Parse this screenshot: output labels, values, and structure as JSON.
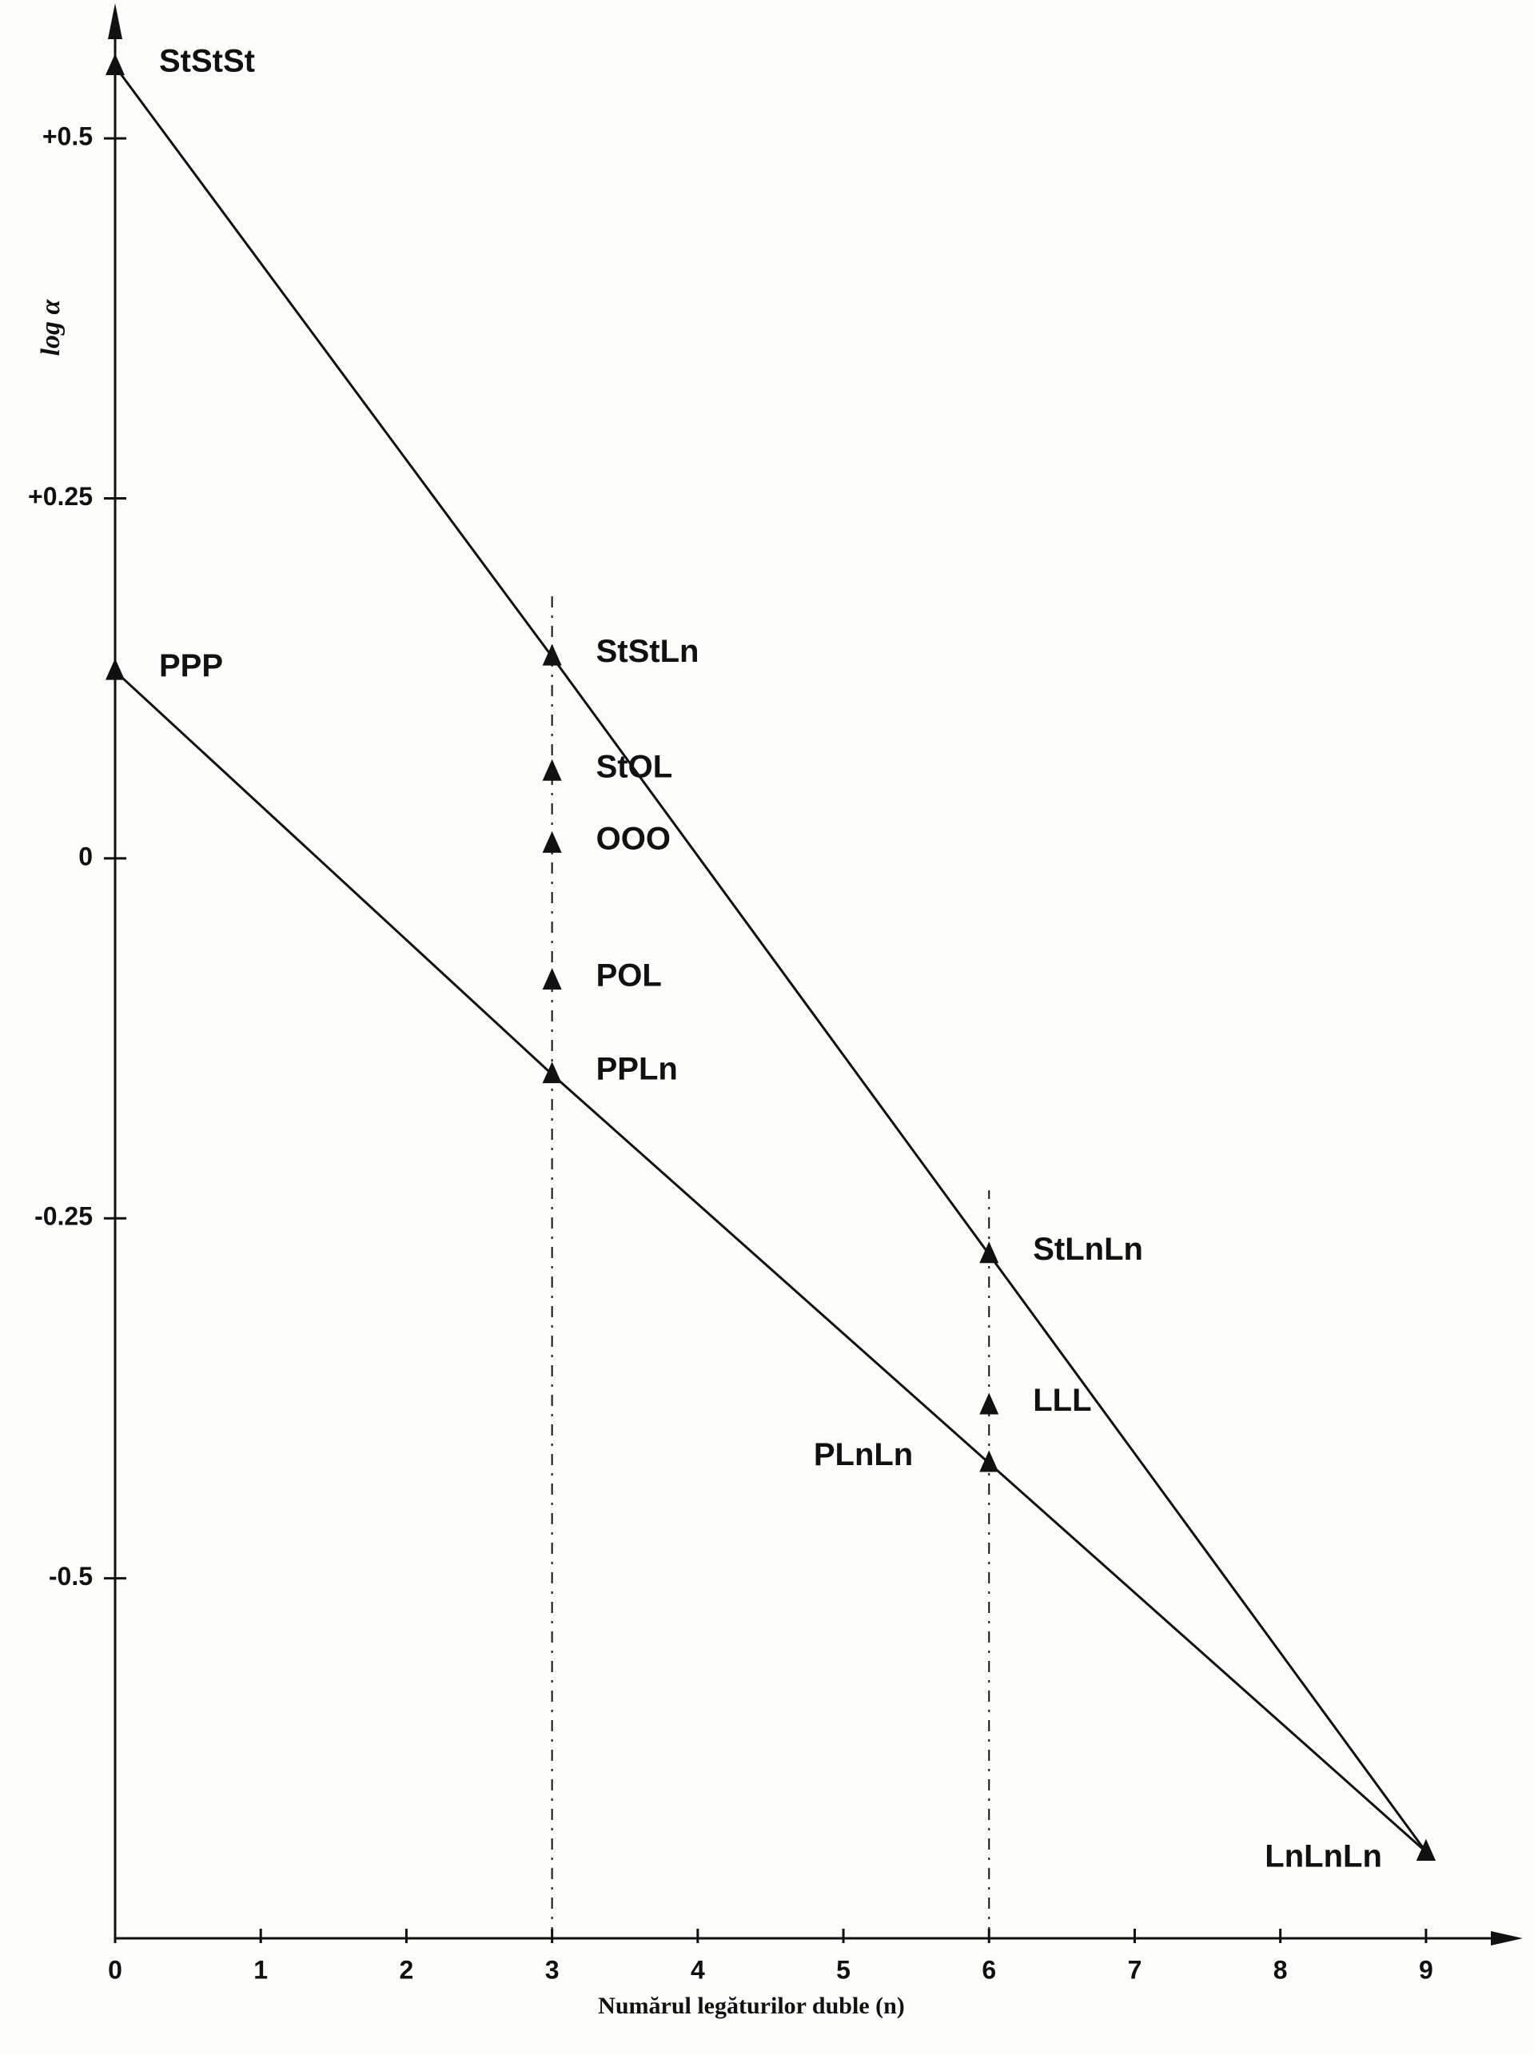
{
  "chart_data": {
    "type": "scatter",
    "ylabel": "log α",
    "xlabel": "Numărul legăturilor duble (n)",
    "xlim": [
      0,
      9.5
    ],
    "ylim": [
      -0.75,
      0.58
    ],
    "xticks": [
      0,
      1,
      2,
      3,
      4,
      5,
      6,
      7,
      8,
      9
    ],
    "yticks": [
      {
        "value": 0.5,
        "label": "+0.5"
      },
      {
        "value": 0.25,
        "label": "+0.25"
      },
      0,
      {
        "value": -0.25,
        "label": "-0.25"
      },
      {
        "value": -0.5,
        "label": "-0.5"
      }
    ],
    "color": "#111111",
    "marker": "triangle",
    "series": [
      {
        "labels": [
          "StStSt",
          "StStLn",
          "StLnLn",
          "LnLnLn"
        ],
        "x": [
          0,
          3,
          6,
          9
        ],
        "values": [
          0.55,
          0.14,
          -0.275,
          -0.69
        ],
        "line": true
      },
      {
        "labels": [
          "PPP",
          "PPLn",
          "PLnLn",
          null
        ],
        "x": [
          0,
          3,
          6,
          9
        ],
        "values": [
          0.13,
          -0.15,
          -0.42,
          -0.69
        ],
        "line": true
      },
      {
        "labels": [
          "StOL",
          "OOO",
          "POL",
          "LLL"
        ],
        "x": [
          3,
          3,
          3,
          6
        ],
        "values": [
          0.06,
          0.01,
          -0.085,
          -0.38
        ],
        "line": false
      }
    ]
  }
}
